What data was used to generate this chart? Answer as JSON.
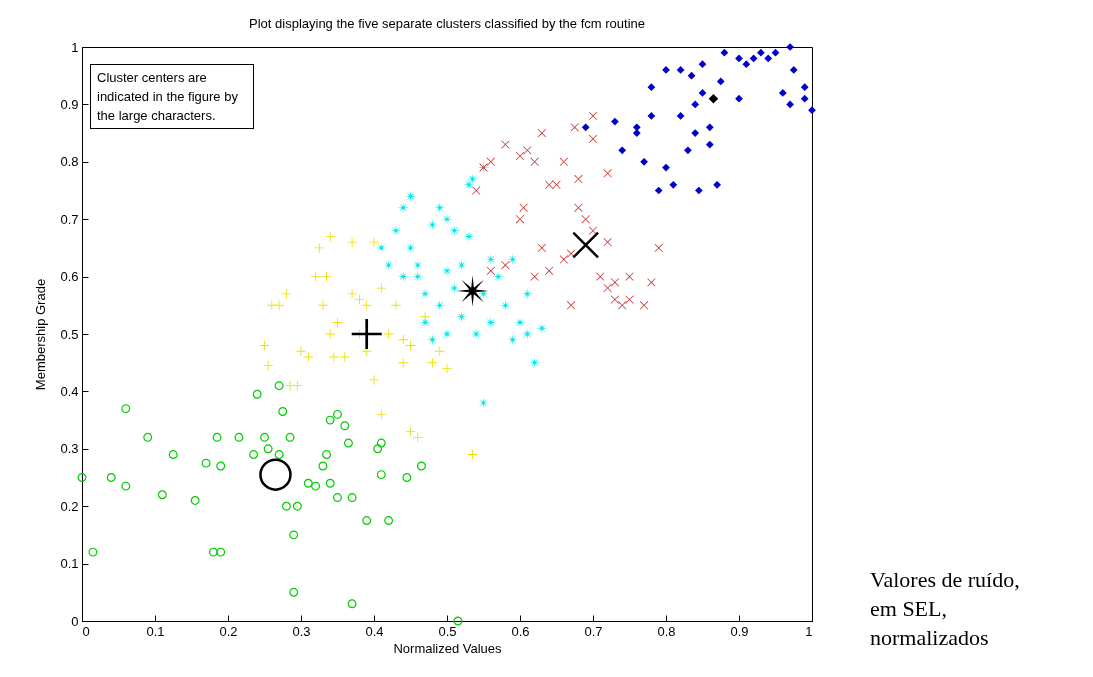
{
  "chart_data": {
    "type": "scatter",
    "title": "Plot displaying the five separate clusters classified by the fcm routine",
    "xlabel": "Normalized Values",
    "ylabel": "Membership Grade",
    "xlim": [
      0,
      1
    ],
    "ylim": [
      0,
      1
    ],
    "xticks": [
      0,
      0.1,
      0.2,
      0.3,
      0.4,
      0.5,
      0.6,
      0.7,
      0.8,
      0.9,
      1
    ],
    "yticks": [
      0,
      0.1,
      0.2,
      0.3,
      0.4,
      0.5,
      0.6,
      0.7,
      0.8,
      0.9,
      1
    ],
    "grid": false,
    "annotations": [
      "Cluster centers are indicated in the figure by the large characters.",
      "Valores de ruído, em SEL, normalizados"
    ],
    "series": [
      {
        "color": "#00cc00",
        "marker": "circle",
        "x": [
          0,
          0.015,
          0.04,
          0.06,
          0.06,
          0.09,
          0.11,
          0.125,
          0.155,
          0.17,
          0.18,
          0.19,
          0.185,
          0.19,
          0.215,
          0.235,
          0.24,
          0.25,
          0.255,
          0.27,
          0.27,
          0.275,
          0.28,
          0.285,
          0.29,
          0.29,
          0.295,
          0.31,
          0.32,
          0.33,
          0.335,
          0.34,
          0.34,
          0.35,
          0.35,
          0.36,
          0.365,
          0.37,
          0.37,
          0.39,
          0.405,
          0.41,
          0.41,
          0.42,
          0.445,
          0.465,
          0.515
        ],
        "values": [
          0.25,
          0.12,
          0.25,
          0.235,
          0.37,
          0.32,
          0.22,
          0.29,
          0.21,
          0.275,
          0.12,
          0.12,
          0.32,
          0.27,
          0.32,
          0.29,
          0.395,
          0.32,
          0.3,
          0.41,
          0.29,
          0.365,
          0.2,
          0.32,
          0.05,
          0.15,
          0.2,
          0.24,
          0.235,
          0.27,
          0.29,
          0.35,
          0.24,
          0.215,
          0.36,
          0.34,
          0.31,
          0.215,
          0.03,
          0.175,
          0.3,
          0.31,
          0.255,
          0.175,
          0.25,
          0.27,
          0
        ]
      },
      {
        "color": "#f0e000",
        "marker": "cross",
        "x": [
          0.25,
          0.255,
          0.26,
          0.27,
          0.28,
          0.285,
          0.295,
          0.3,
          0.31,
          0.32,
          0.325,
          0.33,
          0.335,
          0.34,
          0.34,
          0.345,
          0.35,
          0.36,
          0.37,
          0.37,
          0.38,
          0.38,
          0.39,
          0.39,
          0.4,
          0.4,
          0.41,
          0.41,
          0.42,
          0.43,
          0.44,
          0.44,
          0.45,
          0.45,
          0.46,
          0.47,
          0.48,
          0.49,
          0.5,
          0.535
        ],
        "values": [
          0.48,
          0.445,
          0.55,
          0.55,
          0.57,
          0.41,
          0.41,
          0.47,
          0.46,
          0.6,
          0.65,
          0.55,
          0.6,
          0.67,
          0.5,
          0.46,
          0.52,
          0.46,
          0.66,
          0.57,
          0.56,
          0.5,
          0.55,
          0.47,
          0.42,
          0.66,
          0.58,
          0.36,
          0.5,
          0.55,
          0.49,
          0.45,
          0.33,
          0.48,
          0.32,
          0.53,
          0.45,
          0.47,
          0.44,
          0.29
        ]
      },
      {
        "color": "#00e8e8",
        "marker": "star",
        "x": [
          0.41,
          0.42,
          0.43,
          0.44,
          0.45,
          0.45,
          0.46,
          0.47,
          0.47,
          0.48,
          0.48,
          0.49,
          0.49,
          0.5,
          0.5,
          0.5,
          0.51,
          0.51,
          0.52,
          0.52,
          0.53,
          0.53,
          0.54,
          0.55,
          0.55,
          0.56,
          0.56,
          0.57,
          0.58,
          0.59,
          0.59,
          0.6,
          0.61,
          0.61,
          0.62,
          0.63,
          0.535,
          0.55,
          0.46,
          0.44
        ],
        "values": [
          0.65,
          0.62,
          0.68,
          0.72,
          0.74,
          0.65,
          0.6,
          0.57,
          0.52,
          0.49,
          0.69,
          0.72,
          0.55,
          0.7,
          0.61,
          0.5,
          0.68,
          0.58,
          0.53,
          0.62,
          0.67,
          0.76,
          0.5,
          0.57,
          0.38,
          0.63,
          0.52,
          0.6,
          0.55,
          0.63,
          0.49,
          0.52,
          0.57,
          0.5,
          0.45,
          0.51,
          0.77,
          0.79,
          0.62,
          0.6
        ]
      },
      {
        "color": "#cc3333",
        "marker": "x",
        "x": [
          0.54,
          0.55,
          0.56,
          0.58,
          0.6,
          0.6,
          0.605,
          0.61,
          0.62,
          0.62,
          0.63,
          0.64,
          0.64,
          0.65,
          0.66,
          0.66,
          0.67,
          0.67,
          0.68,
          0.68,
          0.69,
          0.7,
          0.71,
          0.72,
          0.72,
          0.73,
          0.74,
          0.75,
          0.75,
          0.77,
          0.78,
          0.79,
          0.7,
          0.72,
          0.56,
          0.58,
          0.73,
          0.63,
          0.675,
          0.7
        ],
        "values": [
          0.75,
          0.79,
          0.8,
          0.83,
          0.81,
          0.7,
          0.72,
          0.82,
          0.8,
          0.6,
          0.65,
          0.76,
          0.61,
          0.76,
          0.8,
          0.63,
          0.64,
          0.55,
          0.77,
          0.72,
          0.7,
          0.68,
          0.6,
          0.66,
          0.58,
          0.56,
          0.55,
          0.56,
          0.6,
          0.55,
          0.59,
          0.65,
          0.84,
          0.78,
          0.61,
          0.62,
          0.59,
          0.85,
          0.86,
          0.88
        ]
      },
      {
        "color": "#0000cc",
        "marker": "diamond",
        "x": [
          0.74,
          0.76,
          0.76,
          0.77,
          0.78,
          0.78,
          0.79,
          0.8,
          0.8,
          0.81,
          0.82,
          0.82,
          0.83,
          0.835,
          0.84,
          0.84,
          0.845,
          0.85,
          0.85,
          0.86,
          0.86,
          0.87,
          0.875,
          0.88,
          0.9,
          0.9,
          0.91,
          0.92,
          0.93,
          0.94,
          0.95,
          0.96,
          0.97,
          0.97,
          0.975,
          0.99,
          0.99,
          1,
          0.73,
          0.69
        ],
        "values": [
          0.82,
          0.86,
          0.85,
          0.8,
          0.88,
          0.93,
          0.75,
          0.96,
          0.79,
          0.76,
          0.96,
          0.88,
          0.82,
          0.95,
          0.9,
          0.85,
          0.75,
          0.92,
          0.97,
          0.86,
          0.83,
          0.76,
          0.94,
          0.99,
          0.98,
          0.91,
          0.97,
          0.98,
          0.99,
          0.98,
          0.99,
          0.92,
          1,
          0.9,
          0.96,
          0.93,
          0.91,
          0.89,
          0.87,
          0.86
        ]
      },
      {
        "color": "#000000",
        "marker": "circle",
        "x": [
          0.265
        ],
        "values": [
          0.255
        ]
      },
      {
        "color": "#000000",
        "marker": "cross",
        "x": [
          0.39
        ],
        "values": [
          0.5
        ]
      },
      {
        "color": "#000000",
        "marker": "star",
        "x": [
          0.535
        ],
        "values": [
          0.575
        ]
      },
      {
        "color": "#000000",
        "marker": "x",
        "x": [
          0.69
        ],
        "values": [
          0.655
        ]
      },
      {
        "color": "#000000",
        "marker": "diamond",
        "x": [
          0.865
        ],
        "values": [
          0.91
        ]
      }
    ]
  }
}
